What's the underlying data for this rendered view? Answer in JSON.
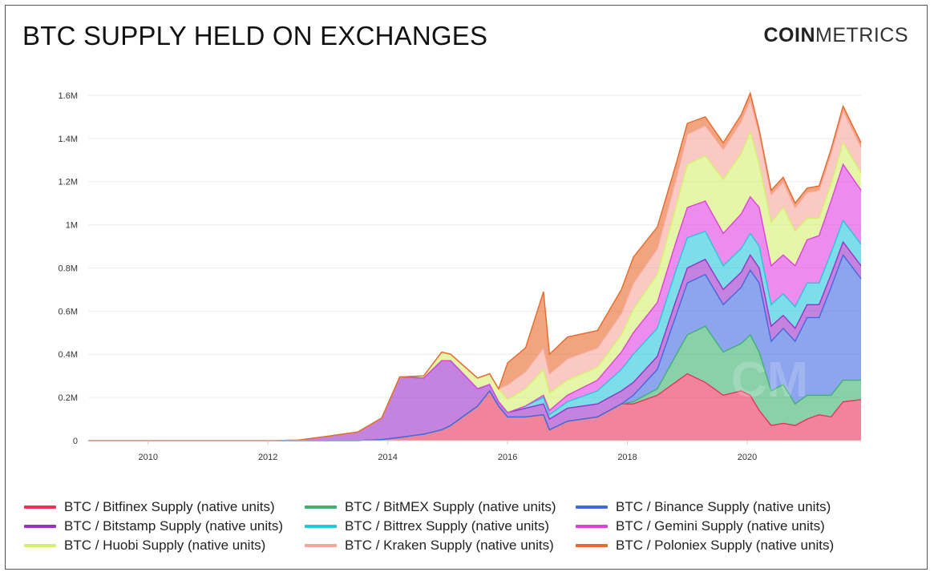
{
  "header": {
    "title": "BTC SUPPLY HELD ON EXCHANGES",
    "brand_bold": "COIN",
    "brand_light": "METRICS"
  },
  "chart_data": {
    "type": "area",
    "stacked": true,
    "title": "BTC SUPPLY HELD ON EXCHANGES",
    "xlabel": "",
    "ylabel": "",
    "xlim": [
      2009.0,
      2021.9
    ],
    "ylim": [
      0,
      1700000
    ],
    "x_ticks": [
      "2010",
      "2012",
      "2014",
      "2016",
      "2018",
      "2020"
    ],
    "y_ticks": [
      "0",
      "0.2M",
      "0.4M",
      "0.6M",
      "0.8M",
      "1M",
      "1.2M",
      "1.4M",
      "1.6M"
    ],
    "y_tick_values": [
      0,
      200000,
      400000,
      600000,
      800000,
      1000000,
      1200000,
      1400000,
      1600000
    ],
    "grid": true,
    "legend_position": "bottom",
    "x": [
      2009.0,
      2012.0,
      2012.5,
      2013.0,
      2013.5,
      2013.9,
      2014.2,
      2014.6,
      2014.9,
      2015.05,
      2015.5,
      2015.7,
      2015.85,
      2016.0,
      2016.3,
      2016.6,
      2016.7,
      2017.0,
      2017.5,
      2017.9,
      2018.1,
      2018.5,
      2018.8,
      2019.0,
      2019.3,
      2019.6,
      2019.9,
      2020.05,
      2020.2,
      2020.4,
      2020.6,
      2020.8,
      2021.0,
      2021.2,
      2021.4,
      2021.6,
      2021.9
    ],
    "series": [
      {
        "name": "BTC / Bitfinex Supply (native units)",
        "color": "#e8325a",
        "values": [
          0,
          0,
          0,
          0,
          0,
          5000,
          15000,
          30000,
          50000,
          70000,
          160000,
          230000,
          160000,
          110000,
          110000,
          120000,
          50000,
          90000,
          110000,
          170000,
          170000,
          210000,
          270000,
          310000,
          270000,
          210000,
          230000,
          210000,
          140000,
          70000,
          80000,
          70000,
          100000,
          120000,
          110000,
          180000,
          190000
        ]
      },
      {
        "name": "BTC / BitMEX Supply (native units)",
        "color": "#3cb371",
        "values": [
          0,
          0,
          0,
          0,
          0,
          0,
          0,
          0,
          0,
          0,
          0,
          0,
          0,
          0,
          0,
          0,
          0,
          0,
          0,
          0,
          10000,
          30000,
          120000,
          180000,
          260000,
          200000,
          220000,
          280000,
          270000,
          160000,
          180000,
          100000,
          110000,
          90000,
          100000,
          100000,
          90000
        ]
      },
      {
        "name": "BTC / Binance Supply (native units)",
        "color": "#4169e1",
        "values": [
          0,
          0,
          0,
          0,
          0,
          0,
          0,
          0,
          0,
          0,
          0,
          0,
          0,
          0,
          0,
          0,
          0,
          0,
          0,
          0,
          30000,
          90000,
          180000,
          240000,
          240000,
          220000,
          260000,
          300000,
          320000,
          230000,
          260000,
          290000,
          360000,
          360000,
          500000,
          580000,
          470000
        ]
      },
      {
        "name": "BTC / Bitstamp Supply (native units)",
        "color": "#9b30c8",
        "values": [
          0,
          0,
          2000,
          20000,
          40000,
          100000,
          280000,
          260000,
          320000,
          300000,
          80000,
          30000,
          20000,
          20000,
          40000,
          50000,
          50000,
          60000,
          60000,
          60000,
          60000,
          60000,
          70000,
          70000,
          70000,
          70000,
          70000,
          70000,
          70000,
          70000,
          60000,
          60000,
          60000,
          60000,
          60000,
          60000,
          60000
        ]
      },
      {
        "name": "BTC / Bittrex Supply (native units)",
        "color": "#26c6da",
        "values": [
          0,
          0,
          0,
          0,
          0,
          0,
          0,
          0,
          0,
          0,
          0,
          0,
          0,
          0,
          10000,
          30000,
          20000,
          30000,
          60000,
          100000,
          130000,
          130000,
          140000,
          140000,
          130000,
          110000,
          110000,
          100000,
          100000,
          100000,
          100000,
          100000,
          100000,
          100000,
          100000,
          100000,
          100000
        ]
      },
      {
        "name": "BTC / Gemini Supply (native units)",
        "color": "#e040e0",
        "values": [
          0,
          0,
          0,
          0,
          0,
          0,
          0,
          0,
          0,
          0,
          0,
          0,
          0,
          0,
          0,
          10000,
          20000,
          30000,
          50000,
          80000,
          100000,
          120000,
          130000,
          140000,
          140000,
          150000,
          160000,
          170000,
          180000,
          180000,
          180000,
          190000,
          200000,
          220000,
          240000,
          260000,
          250000
        ]
      },
      {
        "name": "BTC / Huobi Supply (native units)",
        "color": "#d4f06e",
        "values": [
          0,
          0,
          0,
          0,
          0,
          0,
          0,
          10000,
          40000,
          30000,
          50000,
          50000,
          60000,
          60000,
          80000,
          120000,
          80000,
          70000,
          60000,
          80000,
          110000,
          130000,
          160000,
          200000,
          210000,
          250000,
          280000,
          300000,
          200000,
          200000,
          220000,
          160000,
          100000,
          80000,
          80000,
          100000,
          80000
        ]
      },
      {
        "name": "BTC / Kraken Supply (native units)",
        "color": "#f7a59a",
        "values": [
          0,
          0,
          0,
          0,
          0,
          0,
          0,
          0,
          0,
          0,
          0,
          0,
          0,
          70000,
          80000,
          100000,
          90000,
          100000,
          90000,
          100000,
          120000,
          120000,
          130000,
          140000,
          140000,
          140000,
          150000,
          150000,
          140000,
          130000,
          120000,
          110000,
          120000,
          130000,
          140000,
          150000,
          120000
        ]
      },
      {
        "name": "BTC / Poloniex Supply (native units)",
        "color": "#e8692a",
        "values": [
          0,
          0,
          0,
          0,
          0,
          0,
          0,
          0,
          0,
          0,
          0,
          0,
          0,
          100000,
          110000,
          260000,
          90000,
          100000,
          80000,
          110000,
          120000,
          100000,
          70000,
          50000,
          40000,
          30000,
          30000,
          30000,
          20000,
          20000,
          20000,
          20000,
          20000,
          20000,
          20000,
          20000,
          20000
        ]
      }
    ]
  },
  "watermark": "CM"
}
